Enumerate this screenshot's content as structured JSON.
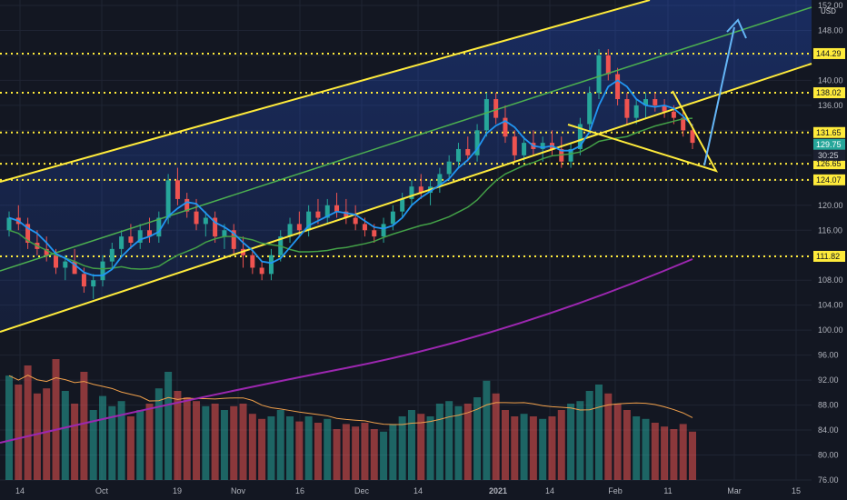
{
  "chart_data": {
    "type": "candlestick",
    "currency": "USD",
    "x_tick_labels": [
      "14",
      "Oct",
      "19",
      "Nov",
      "16",
      "Dec",
      "14",
      "2021",
      "14",
      "Feb",
      "11",
      "Mar",
      "15"
    ],
    "y_tick_labels": [
      "76.00",
      "80.00",
      "84.00",
      "88.00",
      "92.00",
      "96.00",
      "100.00",
      "104.00",
      "108.00",
      "112.00",
      "116.00",
      "120.00",
      "124.00",
      "128.00",
      "132.00",
      "136.00",
      "140.00",
      "144.00",
      "148.00",
      "152.00"
    ],
    "ylim": [
      76,
      152
    ],
    "horizontal_levels": [
      144.29,
      138.02,
      131.65,
      126.65,
      124.07,
      111.82
    ],
    "current_price": "129.75",
    "countdown": "30:25",
    "ohlc": [
      [
        116,
        119,
        115,
        118
      ],
      [
        118,
        120,
        116,
        117
      ],
      [
        117,
        118,
        113,
        114
      ],
      [
        114,
        116,
        112,
        113
      ],
      [
        113,
        115,
        111,
        112
      ],
      [
        112,
        113,
        109,
        110
      ],
      [
        110,
        112,
        108,
        111
      ],
      [
        111,
        113,
        109,
        109
      ],
      [
        109,
        110,
        106,
        107
      ],
      [
        107,
        109,
        105,
        108
      ],
      [
        108,
        112,
        107,
        111
      ],
      [
        111,
        114,
        110,
        113
      ],
      [
        113,
        116,
        112,
        115
      ],
      [
        115,
        117,
        113,
        114
      ],
      [
        114,
        117,
        113,
        116
      ],
      [
        116,
        118,
        114,
        115
      ],
      [
        115,
        119,
        114,
        118
      ],
      [
        118,
        125,
        117,
        124
      ],
      [
        124,
        126,
        120,
        121
      ],
      [
        121,
        122,
        118,
        119
      ],
      [
        119,
        121,
        116,
        117
      ],
      [
        117,
        119,
        115,
        118
      ],
      [
        118,
        119,
        114,
        115
      ],
      [
        115,
        117,
        113,
        116
      ],
      [
        116,
        117,
        112,
        113
      ],
      [
        113,
        115,
        110,
        112
      ],
      [
        112,
        113,
        109,
        110
      ],
      [
        110,
        111,
        108,
        109
      ],
      [
        109,
        113,
        108,
        112
      ],
      [
        112,
        116,
        111,
        115
      ],
      [
        115,
        118,
        114,
        117
      ],
      [
        117,
        119,
        115,
        116
      ],
      [
        116,
        120,
        115,
        119
      ],
      [
        119,
        121,
        117,
        118
      ],
      [
        118,
        121,
        117,
        120
      ],
      [
        120,
        122,
        118,
        119
      ],
      [
        119,
        121,
        117,
        118
      ],
      [
        118,
        120,
        116,
        117
      ],
      [
        117,
        118,
        115,
        116
      ],
      [
        116,
        117,
        114,
        115
      ],
      [
        115,
        118,
        114,
        117
      ],
      [
        117,
        120,
        116,
        119
      ],
      [
        119,
        122,
        118,
        121
      ],
      [
        121,
        124,
        120,
        123
      ],
      [
        123,
        125,
        121,
        122
      ],
      [
        122,
        124,
        120,
        123
      ],
      [
        123,
        126,
        122,
        125
      ],
      [
        125,
        128,
        124,
        127
      ],
      [
        127,
        130,
        126,
        129
      ],
      [
        129,
        131,
        127,
        128
      ],
      [
        128,
        133,
        127,
        132
      ],
      [
        132,
        138,
        131,
        137
      ],
      [
        137,
        138,
        133,
        134
      ],
      [
        134,
        136,
        130,
        131
      ],
      [
        131,
        132,
        127,
        128
      ],
      [
        128,
        131,
        127,
        130
      ],
      [
        130,
        132,
        128,
        129
      ],
      [
        129,
        131,
        127,
        130
      ],
      [
        130,
        132,
        128,
        129
      ],
      [
        129,
        131,
        126,
        127
      ],
      [
        127,
        130,
        126,
        129
      ],
      [
        129,
        134,
        128,
        133
      ],
      [
        133,
        139,
        132,
        138
      ],
      [
        138,
        145,
        137,
        144
      ],
      [
        144,
        145,
        140,
        141
      ],
      [
        141,
        142,
        136,
        137
      ],
      [
        137,
        138,
        133,
        134
      ],
      [
        134,
        137,
        133,
        136
      ],
      [
        136,
        138,
        134,
        137
      ],
      [
        137,
        138,
        135,
        136
      ],
      [
        136,
        137,
        134,
        135
      ],
      [
        135,
        136,
        133,
        134
      ],
      [
        134,
        135,
        131,
        132
      ],
      [
        132,
        133,
        129,
        130
      ]
    ],
    "volume_pct": [
      0.82,
      0.75,
      0.9,
      0.68,
      0.72,
      0.95,
      0.7,
      0.6,
      0.85,
      0.55,
      0.66,
      0.58,
      0.62,
      0.5,
      0.55,
      0.6,
      0.72,
      0.85,
      0.7,
      0.65,
      0.62,
      0.58,
      0.6,
      0.55,
      0.58,
      0.6,
      0.52,
      0.48,
      0.5,
      0.55,
      0.5,
      0.46,
      0.5,
      0.45,
      0.48,
      0.4,
      0.44,
      0.42,
      0.45,
      0.4,
      0.38,
      0.44,
      0.5,
      0.55,
      0.52,
      0.5,
      0.6,
      0.62,
      0.58,
      0.6,
      0.65,
      0.78,
      0.68,
      0.55,
      0.5,
      0.52,
      0.5,
      0.48,
      0.5,
      0.55,
      0.6,
      0.62,
      0.7,
      0.75,
      0.68,
      0.6,
      0.55,
      0.5,
      0.48,
      0.45,
      0.42,
      0.4,
      0.44,
      0.38
    ]
  }
}
